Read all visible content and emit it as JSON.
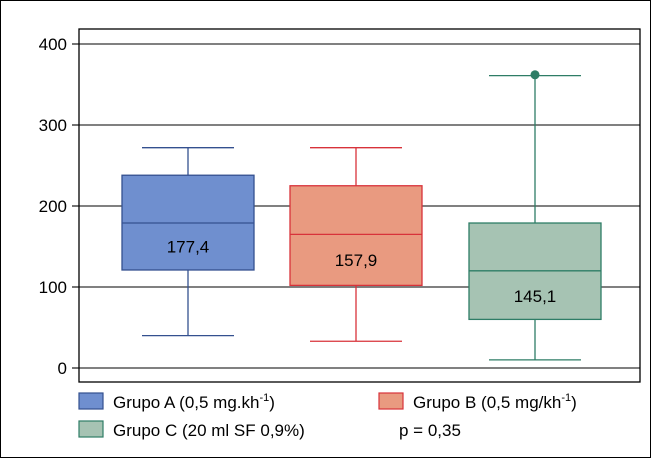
{
  "chart_data": {
    "type": "box",
    "ylim": [
      0,
      400
    ],
    "yticks": [
      0,
      100,
      200,
      300,
      400
    ],
    "grid": true,
    "legend_position": "bottom",
    "series": [
      {
        "name": "Grupo A (0,5 mg.kh",
        "name_sup": "-1",
        "name_close": ")",
        "color": "#6f8fcf",
        "edge": "#34508f",
        "min": 40,
        "q1": 121,
        "median": 179,
        "q3": 238,
        "max": 272,
        "label": "177,4",
        "outliers": []
      },
      {
        "name": "Grupo B (0,5 mg/kh",
        "name_sup": "-1",
        "name_close": ")",
        "color": "#e99a80",
        "edge": "#d8323a",
        "min": 33,
        "q1": 102,
        "median": 165,
        "q3": 225,
        "max": 272,
        "label": "157,9",
        "outliers": []
      },
      {
        "name": "Grupo C (20 ml SF 0,9%)",
        "name_sup": "",
        "name_close": "",
        "color": "#a6c3b3",
        "edge": "#2e7d66",
        "min": 10,
        "q1": 60,
        "median": 120,
        "q3": 179,
        "max": 361,
        "label": "145,1",
        "outliers": [
          362
        ]
      }
    ],
    "annotation": "p = 0,35"
  }
}
